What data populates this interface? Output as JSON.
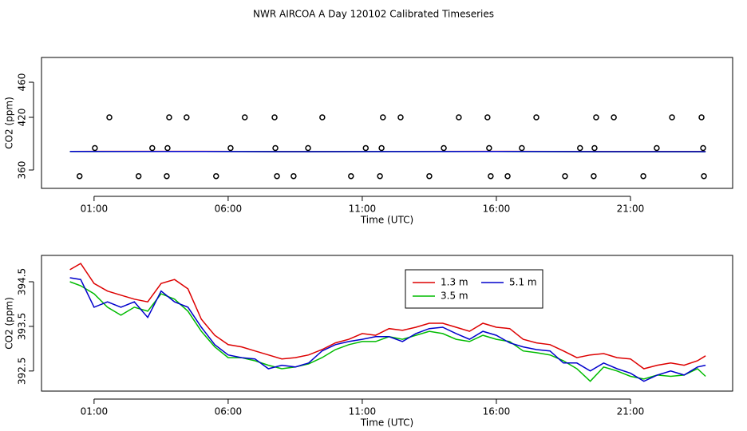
{
  "title": "NWR AIRCOA A  Day 120102  Calibrated Timeseries",
  "chart_data": [
    {
      "type": "line",
      "x_label": "Time (UTC)",
      "y_label": "CO2 (ppm)",
      "xlim": [
        -0.96,
        24.81
      ],
      "xticks": [
        {
          "value": 1,
          "label": "01:00"
        },
        {
          "value": 6,
          "label": "06:00"
        },
        {
          "value": 11,
          "label": "11:00"
        },
        {
          "value": 16,
          "label": "16:00"
        },
        {
          "value": 21,
          "label": "21:00"
        }
      ],
      "ylim": [
        339.1,
        488.2
      ],
      "yticks": [
        360,
        420,
        460
      ],
      "series": [
        {
          "color": "#dd0000",
          "x": [
            0.1,
            4,
            8,
            12,
            16,
            20,
            23.8
          ],
          "values": [
            381.2,
            381.3,
            381.0,
            381.1,
            381.3,
            381.0,
            381.0
          ]
        },
        {
          "color": "#00bb00",
          "x": [
            0.1,
            4,
            8,
            12,
            16,
            20,
            23.8
          ],
          "values": [
            381.0,
            381.2,
            380.9,
            381.0,
            381.1,
            380.8,
            380.8
          ]
        },
        {
          "color": "#0000cc",
          "x": [
            0.1,
            4,
            8,
            12,
            16,
            20,
            23.8
          ],
          "values": [
            381.1,
            381.2,
            380.9,
            381.0,
            381.2,
            380.9,
            380.9
          ]
        },
        {
          "type": "scatter",
          "color": "#000000",
          "x": [
            1.57,
            3.8,
            4.45,
            6.62,
            7.73,
            9.51,
            11.77,
            12.43,
            14.6,
            15.67,
            17.49,
            19.72,
            20.38,
            22.55,
            23.65,
            1.03,
            3.17,
            3.74,
            6.09,
            7.76,
            8.98,
            11.13,
            11.72,
            14.04,
            15.73,
            16.95,
            19.12,
            19.66,
            21.98,
            23.71,
            0.46,
            2.66,
            3.71,
            5.55,
            7.82,
            8.44,
            10.58,
            11.66,
            13.5,
            15.79,
            16.42,
            18.56,
            19.63,
            21.48,
            23.74
          ],
          "values": [
            420,
            420,
            420,
            420,
            420,
            420,
            420,
            420,
            420,
            420,
            420,
            420,
            420,
            420,
            420,
            385,
            385,
            385,
            385,
            385,
            385,
            385,
            385,
            385,
            385,
            385,
            385,
            385,
            385,
            385,
            353,
            353,
            353,
            353,
            353,
            353,
            353,
            353,
            353,
            353,
            353,
            353,
            353,
            353,
            353
          ]
        }
      ]
    },
    {
      "type": "line",
      "x_label": "Time (UTC)",
      "y_label": "CO2 (ppm)",
      "xlim": [
        -0.96,
        24.81
      ],
      "xticks": [
        {
          "value": 1,
          "label": "01:00"
        },
        {
          "value": 6,
          "label": "06:00"
        },
        {
          "value": 11,
          "label": "11:00"
        },
        {
          "value": 16,
          "label": "16:00"
        },
        {
          "value": 21,
          "label": "21:00"
        }
      ],
      "ylim": [
        392.05,
        395.09
      ],
      "yticks": [
        392.5,
        393.5,
        394.5
      ],
      "legend": "top",
      "x": [
        0.1,
        0.5,
        1,
        1.5,
        2,
        2.5,
        3,
        3.5,
        4,
        4.5,
        5,
        5.5,
        6,
        6.5,
        7,
        7.5,
        8,
        8.5,
        9,
        9.5,
        10,
        10.5,
        11,
        11.5,
        12,
        12.5,
        13,
        13.5,
        14,
        14.5,
        15,
        15.5,
        16,
        16.5,
        17,
        17.5,
        18,
        18.5,
        19,
        19.5,
        20,
        20.5,
        21,
        21.5,
        22,
        22.5,
        23,
        23.5,
        23.8
      ],
      "series": [
        {
          "name": "1.3 m",
          "color": "#dd0000",
          "values": [
            394.77,
            394.91,
            394.46,
            394.29,
            394.2,
            394.11,
            394.05,
            394.46,
            394.55,
            394.34,
            393.66,
            393.3,
            393.09,
            393.04,
            392.95,
            392.86,
            392.77,
            392.8,
            392.86,
            392.98,
            393.13,
            393.21,
            393.34,
            393.3,
            393.45,
            393.41,
            393.48,
            393.57,
            393.57,
            393.48,
            393.39,
            393.57,
            393.48,
            393.45,
            393.21,
            393.13,
            393.09,
            392.95,
            392.8,
            392.86,
            392.89,
            392.8,
            392.77,
            392.55,
            392.63,
            392.68,
            392.63,
            392.73,
            392.84
          ]
        },
        {
          "name": "3.5 m",
          "color": "#00bb00",
          "values": [
            394.5,
            394.41,
            394.23,
            393.93,
            393.75,
            393.93,
            393.84,
            394.23,
            394.11,
            393.84,
            393.39,
            393.04,
            392.8,
            392.8,
            392.73,
            392.63,
            392.55,
            392.59,
            392.66,
            392.8,
            392.98,
            393.09,
            393.16,
            393.16,
            393.27,
            393.21,
            393.3,
            393.39,
            393.34,
            393.21,
            393.16,
            393.3,
            393.21,
            393.16,
            392.95,
            392.91,
            392.86,
            392.73,
            392.55,
            392.27,
            392.59,
            392.5,
            392.38,
            392.32,
            392.41,
            392.38,
            392.41,
            392.55,
            392.38
          ]
        },
        {
          "name": "5.1 m",
          "color": "#0000cc",
          "values": [
            394.59,
            394.55,
            393.93,
            394.05,
            393.93,
            394.05,
            393.7,
            394.29,
            394.05,
            393.93,
            393.48,
            393.09,
            392.86,
            392.8,
            392.77,
            392.55,
            392.63,
            392.59,
            392.68,
            392.95,
            393.09,
            393.16,
            393.21,
            393.27,
            393.27,
            393.16,
            393.34,
            393.45,
            393.48,
            393.34,
            393.21,
            393.39,
            393.3,
            393.13,
            393.04,
            392.98,
            392.95,
            392.68,
            392.68,
            392.5,
            392.68,
            392.55,
            392.45,
            392.27,
            392.41,
            392.5,
            392.41,
            392.59,
            392.63
          ]
        }
      ]
    }
  ]
}
